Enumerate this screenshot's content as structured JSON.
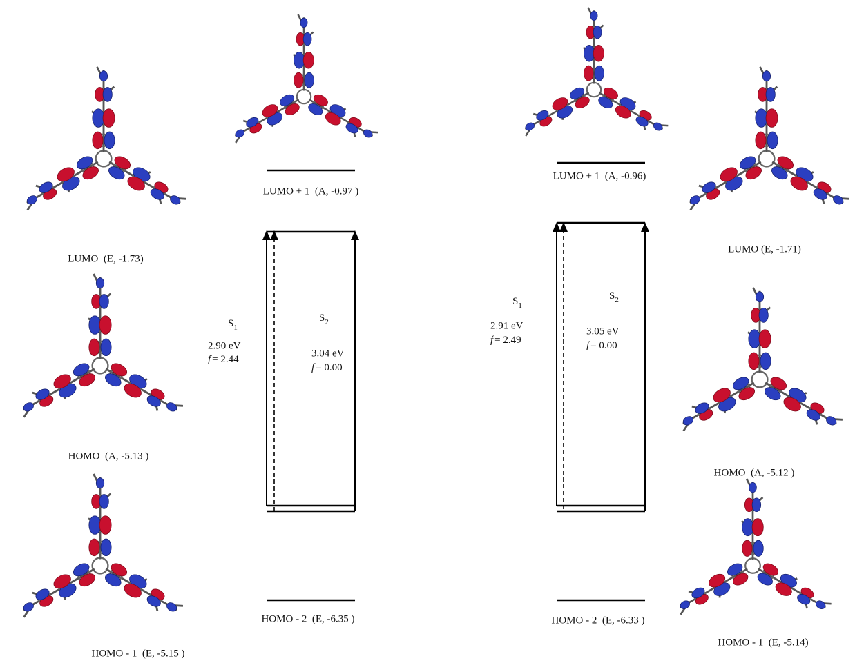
{
  "panels": [
    {
      "orbitals": {
        "lumo_plus_1": "LUMO + 1  (A, -0.97 )",
        "lumo": "LUMO  (E, -1.73)",
        "homo": "HOMO  (A, -5.13 )",
        "homo_minus_1": "HOMO - 1  (E, -5.15 )",
        "homo_minus_2": "HOMO - 2  (E, -6.35 )"
      },
      "transitions": [
        {
          "letter": "S",
          "sub": "1",
          "energy": "2.90 eV",
          "f_symbol": "f",
          "f_value": "= 2.44"
        },
        {
          "letter": "S",
          "sub": "2",
          "energy": "3.04 eV",
          "f_symbol": "f",
          "f_value": "= 0.00"
        }
      ]
    },
    {
      "orbitals": {
        "lumo_plus_1": "LUMO + 1  (A, -0.96)",
        "lumo": "LUMO (E, -1.71)",
        "homo": "HOMO  (A, -5.12 )",
        "homo_minus_1": "HOMO - 1  (E, -5.14)",
        "homo_minus_2": "HOMO - 2  (E, -6.33 )"
      },
      "transitions": [
        {
          "letter": "S",
          "sub": "1",
          "energy": "2.91 eV",
          "f_symbol": "f",
          "f_value": "= 2.49"
        },
        {
          "letter": "S",
          "sub": "2",
          "energy": "3.05 eV",
          "f_symbol": "f",
          "f_value": "= 0.00"
        }
      ]
    }
  ]
}
